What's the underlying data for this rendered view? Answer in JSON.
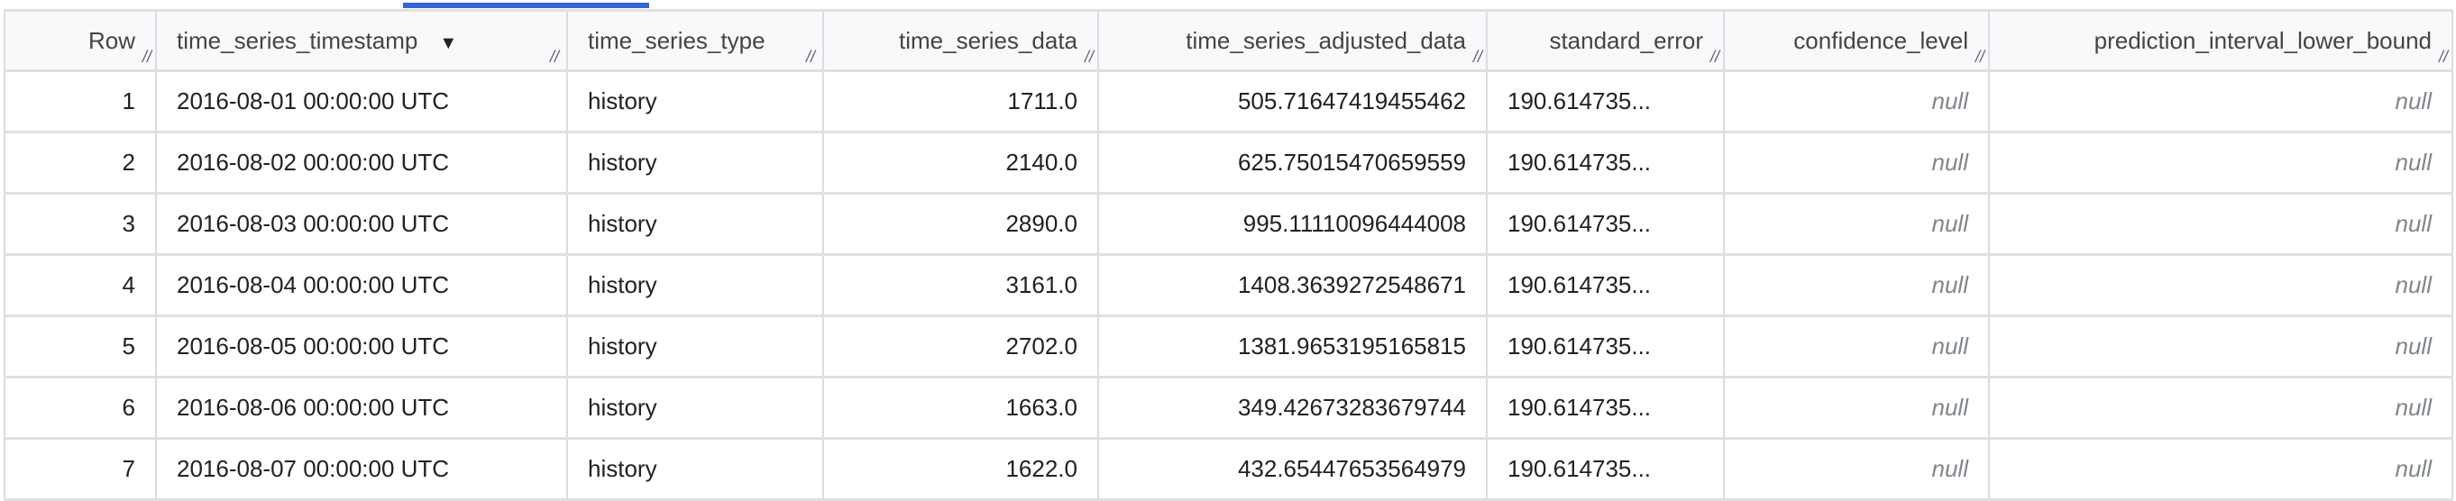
{
  "active_tab_color": "#3367d6",
  "columns": [
    {
      "label": "Row"
    },
    {
      "label": "time_series_timestamp",
      "sort": "descending"
    },
    {
      "label": "time_series_type"
    },
    {
      "label": "time_series_data"
    },
    {
      "label": "time_series_adjusted_data"
    },
    {
      "label": "standard_error"
    },
    {
      "label": "confidence_level"
    },
    {
      "label": "prediction_interval_lower_bound"
    }
  ],
  "sort_icon": "▼",
  "rows": [
    {
      "row": "1",
      "ts": "2016-08-01 00:00:00 UTC",
      "type": "history",
      "data": "1711.0",
      "adj": "505.71647419455462",
      "se": "190.614735...",
      "cl": "null",
      "pil": "null"
    },
    {
      "row": "2",
      "ts": "2016-08-02 00:00:00 UTC",
      "type": "history",
      "data": "2140.0",
      "adj": "625.75015470659559",
      "se": "190.614735...",
      "cl": "null",
      "pil": "null"
    },
    {
      "row": "3",
      "ts": "2016-08-03 00:00:00 UTC",
      "type": "history",
      "data": "2890.0",
      "adj": "995.11110096444008",
      "se": "190.614735...",
      "cl": "null",
      "pil": "null"
    },
    {
      "row": "4",
      "ts": "2016-08-04 00:00:00 UTC",
      "type": "history",
      "data": "3161.0",
      "adj": "1408.3639272548671",
      "se": "190.614735...",
      "cl": "null",
      "pil": "null"
    },
    {
      "row": "5",
      "ts": "2016-08-05 00:00:00 UTC",
      "type": "history",
      "data": "2702.0",
      "adj": "1381.9653195165815",
      "se": "190.614735...",
      "cl": "null",
      "pil": "null"
    },
    {
      "row": "6",
      "ts": "2016-08-06 00:00:00 UTC",
      "type": "history",
      "data": "1663.0",
      "adj": "349.42673283679744",
      "se": "190.614735...",
      "cl": "null",
      "pil": "null"
    },
    {
      "row": "7",
      "ts": "2016-08-07 00:00:00 UTC",
      "type": "history",
      "data": "1622.0",
      "adj": "432.65447653564979",
      "se": "190.614735...",
      "cl": "null",
      "pil": "null"
    }
  ]
}
